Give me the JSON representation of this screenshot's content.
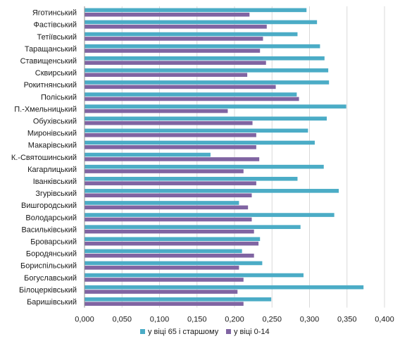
{
  "chart_data": {
    "type": "bar",
    "orientation": "horizontal",
    "categories": [
      "Яготинський",
      "Фастівський",
      "Тетіївський",
      "Таращанський",
      "Ставищенський",
      "Сквирський",
      "Рокитнянський",
      "Поліський",
      "П.-Хмельницький",
      "Обухівський",
      "Миронівський",
      "Макарівський",
      "К.-Святошинський",
      "Кагарлицький",
      "Іванківський",
      "Згурівський",
      "Вишгородський",
      "Володарський",
      "Васильківський",
      "Броварський",
      "Бородянський",
      "Бориспільський",
      "Богуславський",
      "Білоцерківський",
      "Баришівський"
    ],
    "series": [
      {
        "name": "у віці 65 і старшому",
        "color": "#4bacc6",
        "values": [
          0.296,
          0.31,
          0.284,
          0.314,
          0.32,
          0.325,
          0.326,
          0.283,
          0.349,
          0.323,
          0.298,
          0.307,
          0.168,
          0.319,
          0.284,
          0.339,
          0.206,
          0.333,
          0.288,
          0.234,
          0.21,
          0.237,
          0.292,
          0.372,
          0.249
        ]
      },
      {
        "name": "у віці 0-14",
        "color": "#8064a2",
        "values": [
          0.22,
          0.243,
          0.238,
          0.234,
          0.242,
          0.217,
          0.255,
          0.286,
          0.191,
          0.224,
          0.229,
          0.229,
          0.233,
          0.212,
          0.229,
          0.223,
          0.218,
          0.223,
          0.226,
          0.232,
          0.226,
          0.206,
          0.212,
          0.204,
          0.212
        ]
      }
    ],
    "xlim": [
      0,
      0.4
    ],
    "xticks": [
      "0,000",
      "0,050",
      "0,100",
      "0,150",
      "0,200",
      "0,250",
      "0,300",
      "0,350",
      "0,400"
    ],
    "grid": true,
    "legend_position": "bottom"
  }
}
